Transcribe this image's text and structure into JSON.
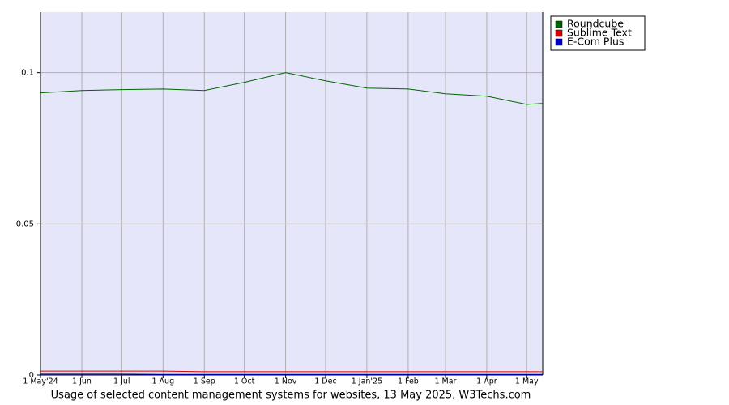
{
  "chart_data": {
    "type": "line",
    "title": "Usage of selected content management systems for websites, 13 May 2025, W3Techs.com",
    "x": [
      0,
      31,
      61,
      92,
      123,
      153,
      184,
      214,
      245,
      276,
      304,
      335,
      365,
      377
    ],
    "xlim": [
      0,
      377
    ],
    "xticks": [
      {
        "value": 0,
        "label": "1 May'24"
      },
      {
        "value": 31,
        "label": "1 Jun"
      },
      {
        "value": 61,
        "label": "1 Jul"
      },
      {
        "value": 92,
        "label": "1 Aug"
      },
      {
        "value": 123,
        "label": "1 Sep"
      },
      {
        "value": 153,
        "label": "1 Oct"
      },
      {
        "value": 184,
        "label": "1 Nov"
      },
      {
        "value": 214,
        "label": "1 Dec"
      },
      {
        "value": 245,
        "label": "1 Jan'25"
      },
      {
        "value": 276,
        "label": "1 Feb"
      },
      {
        "value": 304,
        "label": "1 Mar"
      },
      {
        "value": 335,
        "label": "1 Apr"
      },
      {
        "value": 365,
        "label": "1 May"
      }
    ],
    "ylim": [
      0,
      0.12
    ],
    "yticks": [
      0,
      0.05,
      0.1
    ],
    "grid": true,
    "legend": "top-right",
    "series": [
      {
        "name": "Roundcube",
        "color": "#006400",
        "values": [
          0.0933,
          0.0941,
          0.0944,
          0.0946,
          0.0941,
          0.0968,
          0.1,
          0.0973,
          0.0949,
          0.0946,
          0.093,
          0.0922,
          0.0895,
          0.0898
        ]
      },
      {
        "name": "Sublime Text",
        "color": "#dd0000",
        "values": [
          0.0013,
          0.0013,
          0.0013,
          0.0013,
          0.0011,
          0.0011,
          0.0011,
          0.0011,
          0.0011,
          0.0011,
          0.0011,
          0.0011,
          0.0011,
          0.0011
        ]
      },
      {
        "name": "E-Com Plus",
        "color": "#0000cc",
        "values": [
          0.0003,
          0.0003,
          0.0003,
          0.0002,
          0.0002,
          0.0002,
          0.0002,
          0.0002,
          0.0002,
          0.0002,
          0.0002,
          0.0002,
          0.0002,
          0.0002
        ]
      }
    ]
  }
}
